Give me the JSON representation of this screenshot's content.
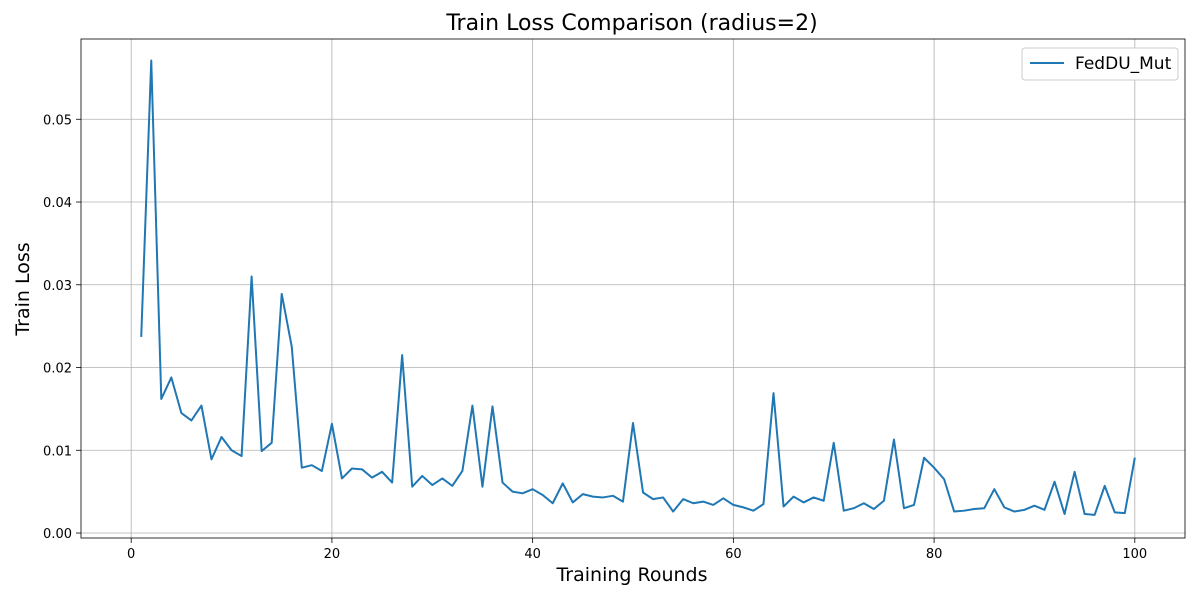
{
  "chart_data": {
    "type": "line",
    "title": "Train Loss Comparison (radius=2)",
    "xlabel": "Training Rounds",
    "ylabel": "Train Loss",
    "xlim": [
      -5,
      105
    ],
    "ylim": [
      -0.0006,
      0.0597
    ],
    "xticks": [
      0,
      20,
      40,
      60,
      80,
      100
    ],
    "yticks": [
      0.0,
      0.01,
      0.02,
      0.03,
      0.04,
      0.05
    ],
    "ytick_labels": [
      "0.00",
      "0.01",
      "0.02",
      "0.03",
      "0.04",
      "0.05"
    ],
    "grid": true,
    "legend_position": "top-right",
    "series": [
      {
        "name": "FedDU_Mut",
        "color": "#1f77b4",
        "x": [
          1,
          2,
          3,
          4,
          5,
          6,
          7,
          8,
          9,
          10,
          11,
          12,
          13,
          14,
          15,
          16,
          17,
          18,
          19,
          20,
          21,
          22,
          23,
          24,
          25,
          26,
          27,
          28,
          29,
          30,
          31,
          32,
          33,
          34,
          35,
          36,
          37,
          38,
          39,
          40,
          41,
          42,
          43,
          44,
          45,
          46,
          47,
          48,
          49,
          50,
          51,
          52,
          53,
          54,
          55,
          56,
          57,
          58,
          59,
          60,
          61,
          62,
          63,
          64,
          65,
          66,
          67,
          68,
          69,
          70,
          71,
          72,
          73,
          74,
          75,
          76,
          77,
          78,
          79,
          80,
          81,
          82,
          83,
          84,
          85,
          86,
          87,
          88,
          89,
          90,
          91,
          92,
          93,
          94,
          95,
          96,
          97,
          98,
          99,
          100
        ],
        "y": [
          0.0237,
          0.0571,
          0.0162,
          0.0188,
          0.0145,
          0.0136,
          0.0154,
          0.0089,
          0.0116,
          0.01,
          0.0093,
          0.031,
          0.0099,
          0.0109,
          0.0289,
          0.0225,
          0.0079,
          0.0082,
          0.0075,
          0.0132,
          0.0066,
          0.0078,
          0.0077,
          0.0067,
          0.0074,
          0.0061,
          0.0215,
          0.0056,
          0.0069,
          0.0058,
          0.0066,
          0.0057,
          0.0075,
          0.0154,
          0.0056,
          0.0153,
          0.0061,
          0.005,
          0.0048,
          0.0053,
          0.0046,
          0.0036,
          0.006,
          0.0037,
          0.0047,
          0.0044,
          0.0043,
          0.0045,
          0.0038,
          0.0133,
          0.0049,
          0.0041,
          0.0043,
          0.0026,
          0.0041,
          0.0036,
          0.0038,
          0.0034,
          0.0042,
          0.0034,
          0.0031,
          0.0027,
          0.0035,
          0.0169,
          0.0032,
          0.0044,
          0.0037,
          0.0043,
          0.0039,
          0.0109,
          0.0027,
          0.003,
          0.0036,
          0.0029,
          0.0039,
          0.0113,
          0.003,
          0.0034,
          0.0091,
          0.0079,
          0.0065,
          0.0026,
          0.0027,
          0.0029,
          0.003,
          0.0053,
          0.0031,
          0.0026,
          0.0028,
          0.0033,
          0.0028,
          0.0062,
          0.0023,
          0.0074,
          0.0023,
          0.0022,
          0.0057,
          0.0025,
          0.0024,
          0.0091
        ]
      }
    ]
  }
}
